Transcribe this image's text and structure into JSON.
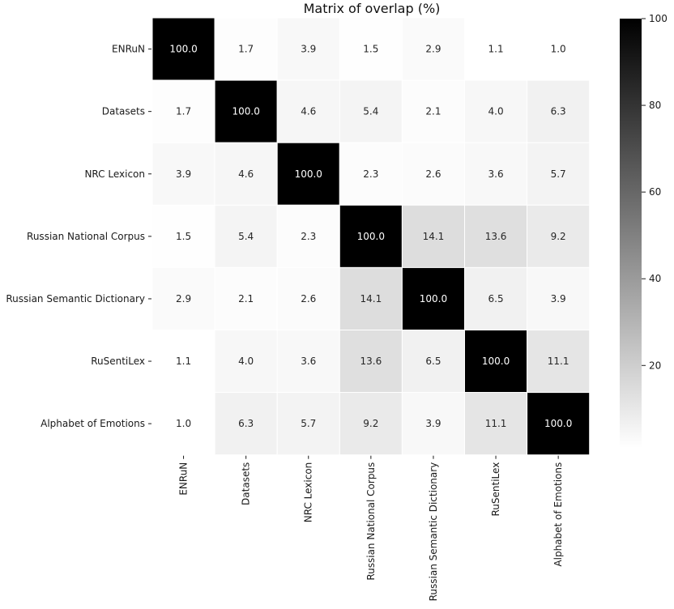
{
  "chart_data": {
    "type": "heatmap",
    "title": "Matrix of overlap (%)",
    "xlabel": "",
    "ylabel": "",
    "row_labels": [
      "ENRuN",
      "Datasets",
      "NRC Lexicon",
      "Russian National Corpus",
      "Russian Semantic Dictionary",
      "RuSentiLex",
      "Alphabet of Emotions"
    ],
    "col_labels": [
      "ENRuN",
      "Datasets",
      "NRC Lexicon",
      "Russian National Corpus",
      "Russian Semantic Dictionary",
      "RuSentiLex",
      "Alphabet of Emotions"
    ],
    "values": [
      [
        100.0,
        1.7,
        3.9,
        1.5,
        2.9,
        1.1,
        1.0
      ],
      [
        1.7,
        100.0,
        4.6,
        5.4,
        2.1,
        4.0,
        6.3
      ],
      [
        3.9,
        4.6,
        100.0,
        2.3,
        2.6,
        3.6,
        5.7
      ],
      [
        1.5,
        5.4,
        2.3,
        100.0,
        14.1,
        13.6,
        9.2
      ],
      [
        2.9,
        2.1,
        2.6,
        14.1,
        100.0,
        6.5,
        3.9
      ],
      [
        1.1,
        4.0,
        3.6,
        13.6,
        6.5,
        100.0,
        11.1
      ],
      [
        1.0,
        6.3,
        5.7,
        9.2,
        3.9,
        11.1,
        100.0
      ]
    ],
    "colorbar": {
      "range": [
        1.0,
        100
      ],
      "ticks": [
        20,
        40,
        60,
        80,
        100
      ],
      "low_color": "#ffffff",
      "high_color": "#000000"
    },
    "grid_line_color": "#ffffff"
  }
}
